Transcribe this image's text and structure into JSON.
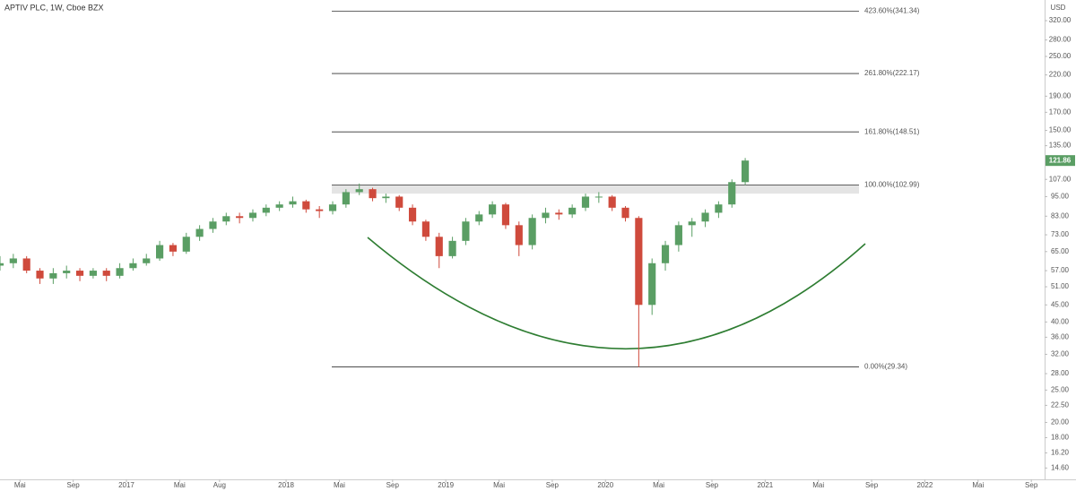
{
  "chart_data": {
    "type": "candlestick",
    "title": "APTIV PLC, 1W, Cboe BZX",
    "currency": "USD",
    "log_scale": true,
    "up_color": "#5a9e64",
    "down_color": "#cf4a3c",
    "x": [
      2.5,
      3.5,
      4.5,
      5.5,
      6.5,
      7.5,
      8.5,
      9.5,
      10.5,
      11.5,
      12.5,
      13.5,
      14.5,
      15.5,
      16.5,
      17.5,
      18.5,
      19.5,
      20.5,
      21.5,
      22.5,
      23.5,
      24.5,
      25.5,
      26.5,
      27.5,
      28.5,
      29.5,
      30.5,
      31.5,
      32.5,
      33.5,
      34.5,
      35.5,
      36.5,
      37.5,
      38.5,
      39.5,
      40.5,
      41.5,
      42.5,
      43.5,
      44.5,
      45.5,
      46.5,
      47.5,
      48.5,
      49.5,
      50.5,
      51.5,
      52.5,
      53.5,
      54.5,
      55.5,
      56.5,
      57.5,
      58.5
    ],
    "open": [
      59,
      60,
      62,
      57,
      54,
      56,
      57,
      55,
      57,
      55,
      58,
      60,
      62,
      68,
      65,
      72,
      76,
      80,
      83,
      82,
      85,
      88,
      90,
      92,
      87,
      86,
      90,
      98,
      100,
      94,
      95,
      88,
      80,
      72,
      63,
      70,
      80,
      84,
      90,
      78,
      68,
      82,
      85,
      84,
      88,
      95,
      95,
      88,
      82,
      45,
      60,
      68,
      78,
      80,
      85,
      90,
      105
    ],
    "high": [
      63,
      64,
      63,
      58,
      58,
      59,
      58,
      58,
      58,
      60,
      62,
      64,
      70,
      69,
      74,
      78,
      82,
      85,
      85,
      87,
      90,
      92,
      95,
      93,
      89,
      92,
      100,
      104,
      101,
      97,
      96,
      90,
      81,
      74,
      72,
      82,
      86,
      92,
      91,
      80,
      84,
      88,
      87,
      90,
      97,
      98,
      96,
      89,
      83,
      62,
      70,
      80,
      82,
      87,
      92,
      107,
      124
    ],
    "low": [
      57,
      58,
      56,
      52,
      52,
      54,
      53,
      54,
      53,
      54,
      57,
      59,
      61,
      63,
      64,
      70,
      74,
      78,
      79,
      80,
      83,
      86,
      88,
      85,
      82,
      84,
      88,
      96,
      92,
      91,
      86,
      78,
      70,
      58,
      62,
      68,
      78,
      82,
      76,
      63,
      66,
      79,
      81,
      82,
      86,
      91,
      86,
      80,
      29.34,
      42,
      57,
      65,
      72,
      77,
      82,
      88,
      103
    ],
    "close": [
      60,
      62,
      57,
      54,
      56,
      57,
      55,
      57,
      55,
      58,
      60,
      62,
      68,
      65,
      72,
      76,
      80,
      83,
      82,
      85,
      88,
      90,
      92,
      87,
      86,
      90,
      98,
      100,
      94,
      95,
      88,
      80,
      72,
      63,
      70,
      80,
      84,
      90,
      78,
      68,
      82,
      85,
      84,
      88,
      95,
      95,
      88,
      82,
      45,
      60,
      68,
      78,
      80,
      85,
      90,
      105,
      121.86
    ],
    "last_price": 121.86,
    "fib_levels": [
      {
        "value": 341.34,
        "label": "423.60%(341.34)"
      },
      {
        "value": 222.17,
        "label": "261.80%(222.17)"
      },
      {
        "value": 148.51,
        "label": "161.80%(148.51)"
      },
      {
        "value": 102.99,
        "label": "100.00%(102.99)"
      },
      {
        "value": 29.34,
        "label": "0.00%(29.34)"
      }
    ],
    "zone_low": 97,
    "xlim": [
      2.5,
      81
    ],
    "xticks": [
      {
        "value": 4,
        "label": "Mai"
      },
      {
        "value": 8,
        "label": "Sep"
      },
      {
        "value": 12,
        "label": "2017"
      },
      {
        "value": 16,
        "label": "Mai"
      },
      {
        "value": 19,
        "label": "Aug"
      },
      {
        "value": 24,
        "label": "2018"
      },
      {
        "value": 28,
        "label": "Mai"
      },
      {
        "value": 32,
        "label": "Sep"
      },
      {
        "value": 36,
        "label": "2019"
      },
      {
        "value": 40,
        "label": "Mai"
      },
      {
        "value": 44,
        "label": "Sep"
      },
      {
        "value": 48,
        "label": "2020"
      },
      {
        "value": 52,
        "label": "Mai"
      },
      {
        "value": 56,
        "label": "Sep"
      },
      {
        "value": 60,
        "label": "2021"
      },
      {
        "value": 64,
        "label": "Mai"
      },
      {
        "value": 68,
        "label": "Sep"
      },
      {
        "value": 72,
        "label": "2022"
      },
      {
        "value": 76,
        "label": "Mai"
      },
      {
        "value": 80,
        "label": "Sep"
      }
    ],
    "ylim": [
      13.5,
      369
    ],
    "yticks": [
      {
        "value": 14.6,
        "label": "14.60"
      },
      {
        "value": 16.2,
        "label": "16.20"
      },
      {
        "value": 18,
        "label": "18.00"
      },
      {
        "value": 20,
        "label": "20.00"
      },
      {
        "value": 22.5,
        "label": "22.50"
      },
      {
        "value": 25,
        "label": "25.00"
      },
      {
        "value": 28,
        "label": "28.00"
      },
      {
        "value": 32,
        "label": "32.00"
      },
      {
        "value": 36,
        "label": "36.00"
      },
      {
        "value": 40,
        "label": "40.00"
      },
      {
        "value": 45,
        "label": "45.00"
      },
      {
        "value": 51,
        "label": "51.00"
      },
      {
        "value": 57,
        "label": "57.00"
      },
      {
        "value": 65,
        "label": "65.00"
      },
      {
        "value": 73,
        "label": "73.00"
      },
      {
        "value": 83,
        "label": "83.00"
      },
      {
        "value": 95,
        "label": "95.00"
      },
      {
        "value": 107,
        "label": "107.00"
      },
      {
        "value": 135,
        "label": "135.00"
      },
      {
        "value": 150,
        "label": "150.00"
      },
      {
        "value": 170,
        "label": "170.00"
      },
      {
        "value": 190,
        "label": "190.00"
      },
      {
        "value": 220,
        "label": "220.00"
      },
      {
        "value": 250,
        "label": "250.00"
      },
      {
        "value": 280,
        "label": "280.00"
      },
      {
        "value": 320,
        "label": "320.00"
      }
    ]
  }
}
